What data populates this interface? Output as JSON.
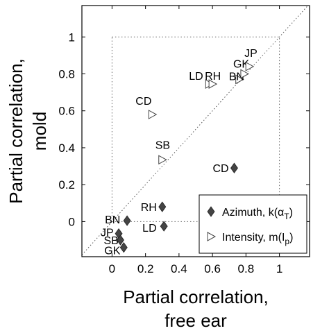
{
  "chart_data": {
    "type": "scatter",
    "title": "",
    "xlabel_lines": [
      "Partial correlation,",
      "free ear"
    ],
    "ylabel_lines": [
      "Partial correlation,",
      "mold"
    ],
    "xlim": [
      -0.18,
      1.18
    ],
    "ylim": [
      -0.19,
      1.17
    ],
    "xticks": [
      0,
      0.2,
      0.4,
      0.6,
      0.8,
      1
    ],
    "yticks": [
      0,
      0.2,
      0.4,
      0.6,
      0.8,
      1
    ],
    "xtick_labels": [
      "0",
      "0.2",
      "0.4",
      "0.6",
      "0.8",
      "1"
    ],
    "ytick_labels": [
      "0",
      "0.2",
      "0.4",
      "0.6",
      "0.8",
      "1"
    ],
    "grid": false,
    "reference_box": [
      0,
      1
    ],
    "diagonal": true,
    "legend": {
      "placement": "bottom-right",
      "entries": [
        {
          "series": "azimuth",
          "text": "Azimuth, k(α",
          "sub": "T",
          "close": ")"
        },
        {
          "series": "intensity",
          "text": "Intensity, m(I",
          "sub": "p",
          "close": ")"
        }
      ]
    },
    "series": [
      {
        "id": "azimuth",
        "marker": "diamond",
        "color": "#444444",
        "points": [
          {
            "label": "BN",
            "x": 0.09,
            "y": 0.005
          },
          {
            "label": "JP",
            "x": 0.04,
            "y": -0.065
          },
          {
            "label": "SB",
            "x": 0.05,
            "y": -0.1
          },
          {
            "label": "GK",
            "x": 0.07,
            "y": -0.14
          },
          {
            "label": "RH",
            "x": 0.3,
            "y": 0.08
          },
          {
            "label": "LD",
            "x": 0.31,
            "y": -0.025
          },
          {
            "label": "CD",
            "x": 0.73,
            "y": 0.29
          }
        ]
      },
      {
        "id": "intensity",
        "marker": "triangle-right",
        "color": "#ffffff",
        "stroke": "#444444",
        "points": [
          {
            "label": "CD",
            "x": 0.24,
            "y": 0.58
          },
          {
            "label": "SB",
            "x": 0.3,
            "y": 0.335
          },
          {
            "label": "LD",
            "x": 0.58,
            "y": 0.745
          },
          {
            "label": "RH",
            "x": 0.6,
            "y": 0.745
          },
          {
            "label": "BN",
            "x": 0.76,
            "y": 0.77
          },
          {
            "label": "GK",
            "x": 0.79,
            "y": 0.8
          },
          {
            "label": "JP",
            "x": 0.82,
            "y": 0.84
          }
        ]
      }
    ]
  }
}
